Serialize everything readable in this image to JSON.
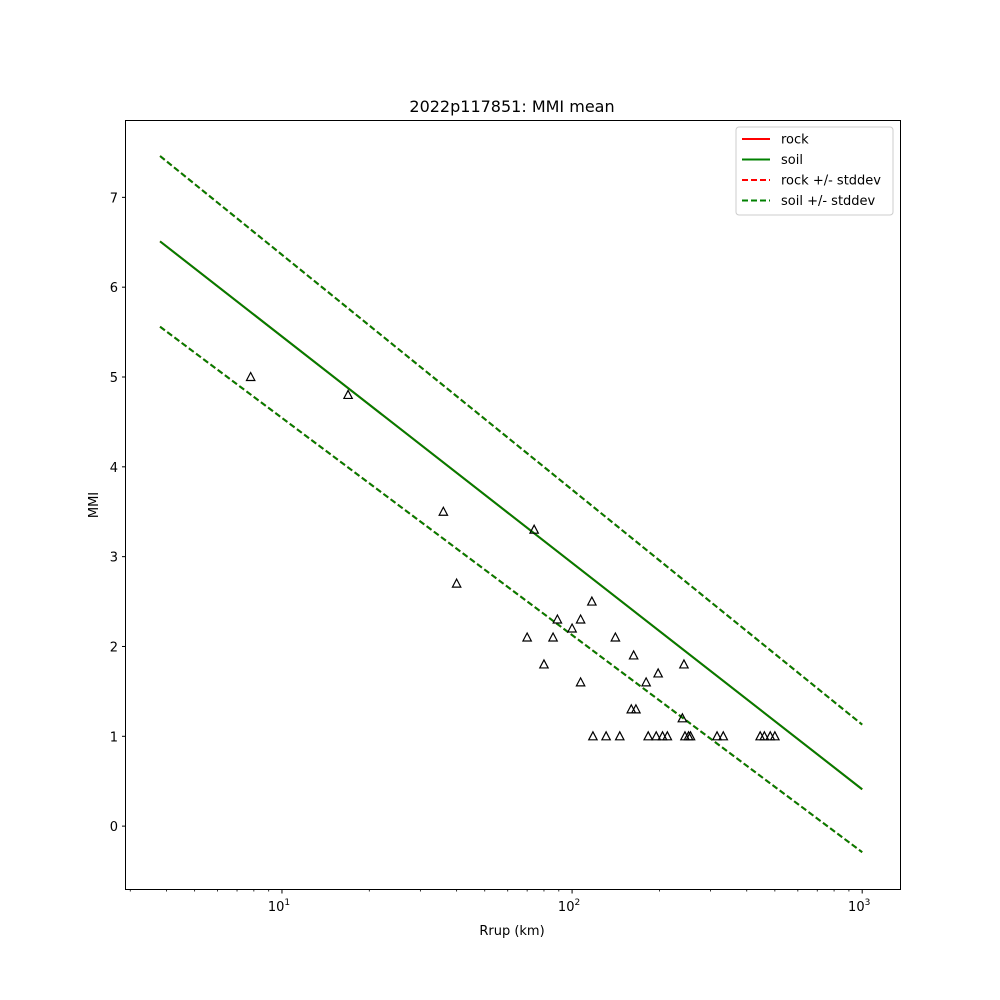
{
  "chart_data": {
    "type": "line",
    "title": "2022p117851: MMI mean",
    "xlabel": "Rrup (km)",
    "ylabel": "MMI",
    "xscale": "log",
    "xlim": [
      2.9,
      1350
    ],
    "ylim": [
      -0.7,
      7.85
    ],
    "grid": false,
    "legend_position": "top-right",
    "x_ticks": [
      {
        "value": 10,
        "base": "10",
        "exp": "1"
      },
      {
        "value": 100,
        "base": "10",
        "exp": "2"
      },
      {
        "value": 1000,
        "base": "10",
        "exp": "3"
      }
    ],
    "y_ticks": [
      0,
      1,
      2,
      3,
      4,
      5,
      6,
      7
    ],
    "series": [
      {
        "name": "rock",
        "style": "solid",
        "color": "#ff0000",
        "x": [
          3.8,
          1000
        ],
        "y": [
          6.51,
          0.41
        ]
      },
      {
        "name": "soil",
        "style": "solid",
        "color": "#008000",
        "x": [
          3.8,
          1000
        ],
        "y": [
          6.51,
          0.41
        ]
      },
      {
        "name": "rock +/- stddev",
        "style": "dashed",
        "color": "#ff0000",
        "x": [
          3.8,
          1000
        ],
        "y_upper": [
          7.46,
          1.13
        ],
        "y_lower": [
          5.56,
          -0.29
        ]
      },
      {
        "name": "soil +/- stddev",
        "style": "dashed",
        "color": "#008000",
        "x": [
          3.8,
          1000
        ],
        "y_upper": [
          7.46,
          1.13
        ],
        "y_lower": [
          5.56,
          -0.29
        ]
      }
    ],
    "observations": {
      "marker": "triangle",
      "points": [
        [
          7.8,
          5.0
        ],
        [
          16.9,
          4.8
        ],
        [
          36,
          3.5
        ],
        [
          40,
          2.7
        ],
        [
          70,
          2.1
        ],
        [
          74,
          3.3
        ],
        [
          80,
          1.8
        ],
        [
          86,
          2.1
        ],
        [
          89,
          2.3
        ],
        [
          100,
          2.2
        ],
        [
          107,
          1.6
        ],
        [
          107,
          2.3
        ],
        [
          117,
          2.5
        ],
        [
          118,
          1.0
        ],
        [
          131,
          1.0
        ],
        [
          141,
          2.1
        ],
        [
          146,
          1.0
        ],
        [
          160,
          1.3
        ],
        [
          163,
          1.9
        ],
        [
          166,
          1.3
        ],
        [
          180,
          1.6
        ],
        [
          183,
          1.0
        ],
        [
          195,
          1.0
        ],
        [
          198,
          1.7
        ],
        [
          205,
          1.0
        ],
        [
          213,
          1.0
        ],
        [
          240,
          1.2
        ],
        [
          243,
          1.8
        ],
        [
          245,
          1.0
        ],
        [
          252,
          1.0
        ],
        [
          256,
          1.0
        ],
        [
          316,
          1.0
        ],
        [
          332,
          1.0
        ],
        [
          445,
          1.0
        ],
        [
          460,
          1.0
        ],
        [
          482,
          1.0
        ],
        [
          500,
          1.0
        ]
      ]
    }
  }
}
